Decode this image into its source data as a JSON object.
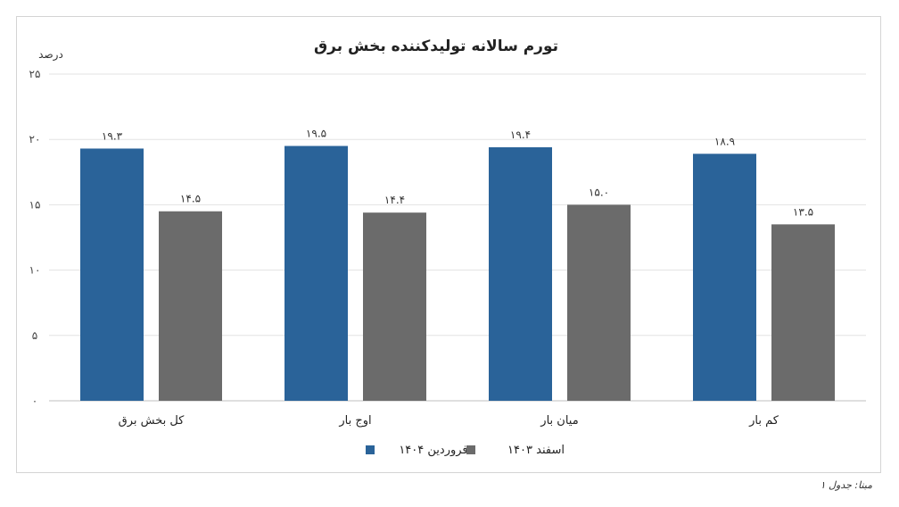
{
  "chart_data": {
    "type": "bar",
    "title": "تورم سالانه تولیدکننده بخش برق",
    "ylabel": "درصد",
    "categories": [
      "کل بخش برق",
      "اوج بار",
      "میان بار",
      "کم بار"
    ],
    "series": [
      {
        "name": "فروردین ۱۴۰۴",
        "color": "#2A6399",
        "values": [
          19.3,
          19.5,
          19.4,
          18.9
        ],
        "labels": [
          "۱۹.۳",
          "۱۹.۵",
          "۱۹.۴",
          "۱۸.۹"
        ]
      },
      {
        "name": "اسفند ۱۴۰۳",
        "color": "#6B6B6B",
        "values": [
          14.5,
          14.4,
          15.0,
          13.5
        ],
        "labels": [
          "۱۴.۵",
          "۱۴.۴",
          "۱۵.۰",
          "۱۳.۵"
        ]
      }
    ],
    "ylim": [
      0,
      25
    ],
    "yticks": [
      0,
      5,
      10,
      15,
      20,
      25
    ],
    "ytick_labels": [
      "۰",
      "۵",
      "۱۰",
      "۱۵",
      "۲۰",
      "۲۵"
    ],
    "grid": true,
    "legend_position": "bottom"
  },
  "source_note": "مبنا: جدول ۱"
}
